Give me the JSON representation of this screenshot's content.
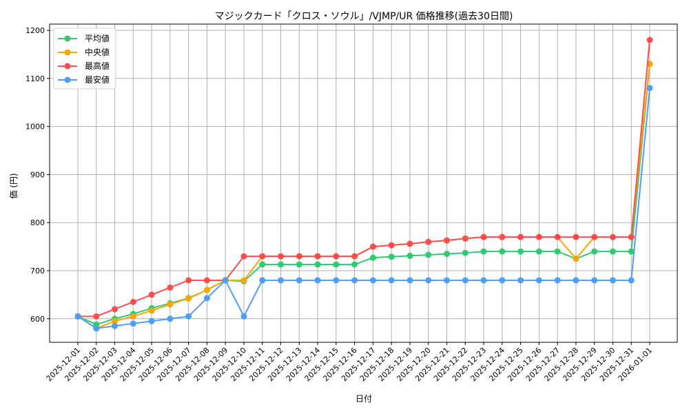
{
  "chart_data": {
    "type": "line",
    "title": "マジックカード「クロス・ソウル」/VJMP/UR 価格推移(過去30日間)",
    "xlabel": "日付",
    "ylabel": "価 (円)",
    "ylim": [
      551,
      1213
    ],
    "yticks": [
      600,
      700,
      800,
      900,
      1000,
      1100,
      1200
    ],
    "grid": true,
    "legend_position": "top-left",
    "x": [
      "2025-12-01",
      "2025-12-02",
      "2025-12-03",
      "2025-12-04",
      "2025-12-05",
      "2025-12-06",
      "2025-12-07",
      "2025-12-08",
      "2025-12-09",
      "2025-12-10",
      "2025-12-11",
      "2025-12-12",
      "2025-12-13",
      "2025-12-14",
      "2025-12-15",
      "2025-12-16",
      "2025-12-17",
      "2025-12-18",
      "2025-12-19",
      "2025-12-20",
      "2025-12-21",
      "2025-12-22",
      "2025-12-23",
      "2025-12-24",
      "2025-12-25",
      "2025-12-26",
      "2025-12-27",
      "2025-12-28",
      "2025-12-29",
      "2025-12-30",
      "2025-12-31",
      "2026-01-01"
    ],
    "series": [
      {
        "name": "平均値",
        "color": "#2ecc71",
        "values": [
          605,
          588,
          600,
          610,
          622,
          632,
          643,
          660,
          680,
          678,
          713,
          713,
          713,
          713,
          713,
          713,
          727,
          729,
          731,
          733,
          735,
          737,
          740,
          740,
          740,
          740,
          740,
          725,
          740,
          740,
          740,
          1130
        ]
      },
      {
        "name": "中央値",
        "color": "#ffa500",
        "values": [
          605,
          580,
          595,
          605,
          617,
          630,
          642,
          660,
          680,
          680,
          730,
          730,
          730,
          730,
          730,
          730,
          750,
          753,
          756,
          760,
          763,
          767,
          770,
          770,
          770,
          770,
          770,
          725,
          770,
          770,
          770,
          1130
        ]
      },
      {
        "name": "最高値",
        "color": "#ff4d4d",
        "values": [
          605,
          605,
          620,
          635,
          650,
          665,
          680,
          680,
          680,
          730,
          730,
          730,
          730,
          730,
          730,
          730,
          750,
          753,
          756,
          760,
          763,
          767,
          770,
          770,
          770,
          770,
          770,
          770,
          770,
          770,
          770,
          1180
        ]
      },
      {
        "name": "最安値",
        "color": "#4d9eff",
        "values": [
          605,
          580,
          585,
          590,
          595,
          600,
          605,
          643,
          680,
          605,
          680,
          680,
          680,
          680,
          680,
          680,
          680,
          680,
          680,
          680,
          680,
          680,
          680,
          680,
          680,
          680,
          680,
          680,
          680,
          680,
          680,
          1080
        ]
      }
    ]
  }
}
